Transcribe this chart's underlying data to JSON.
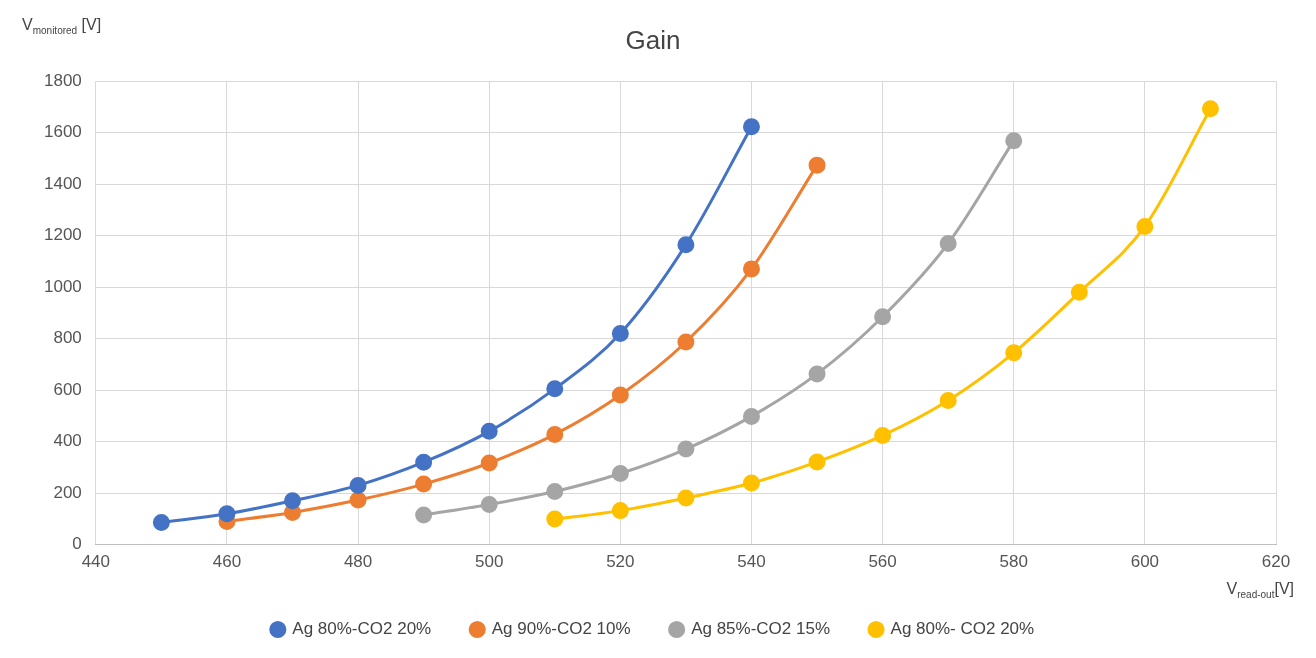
{
  "chart_data": {
    "type": "line",
    "title": "Gain",
    "xlabel": "V$_{read-out}$[V]",
    "ylabel": "V$_{monitored}$ [V]",
    "xlim": [
      440,
      620
    ],
    "xticks": [
      440,
      460,
      480,
      500,
      520,
      540,
      560,
      580,
      600,
      620
    ],
    "ylim": [
      0,
      1800
    ],
    "yticks": [
      0,
      200,
      400,
      600,
      800,
      1000,
      1200,
      1400,
      1600,
      1800
    ],
    "grid": true,
    "legend": "bottom",
    "marker": "circle",
    "line_style": "solid",
    "series": [
      {
        "name": "Ag 80%-CO2 20%",
        "color": "#4472c4",
        "x": [
          450,
          460,
          470,
          480,
          490,
          500,
          510,
          520,
          530,
          540
        ],
        "values": [
          86,
          120,
          170,
          230,
          320,
          440,
          605,
          820,
          1165,
          1623
        ]
      },
      {
        "name": "Ag 90%-CO2 10%",
        "color": "#ed7d31",
        "x": [
          460,
          470,
          480,
          490,
          500,
          510,
          520,
          530,
          540,
          550
        ],
        "values": [
          90,
          125,
          173,
          235,
          317,
          428,
          581,
          787,
          1071,
          1474
        ]
      },
      {
        "name": "Ag 85%-CO2 15%",
        "color": "#a5a5a5",
        "x": [
          490,
          500,
          510,
          520,
          530,
          540,
          550,
          560,
          570,
          580
        ],
        "values": [
          115,
          156,
          206,
          276,
          371,
          498,
          663,
          885,
          1170,
          1569
        ]
      },
      {
        "name": "Ag 80%- CO2 20%",
        "color": "#ffc000",
        "x": [
          510,
          520,
          530,
          540,
          550,
          560,
          570,
          580,
          590,
          600,
          610
        ],
        "values": [
          99,
          132,
          181,
          239,
          321,
          424,
          560,
          745,
          980,
          1236,
          1693
        ]
      }
    ]
  }
}
